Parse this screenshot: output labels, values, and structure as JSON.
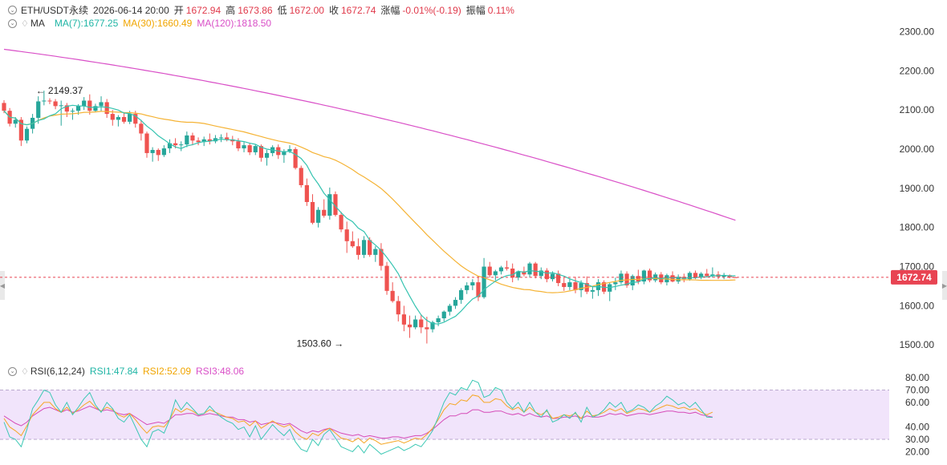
{
  "header": {
    "symbol": "ETH/USDT永续",
    "datetime": "2026-06-14 20:00",
    "open_label": "开",
    "open": "1672.94",
    "high_label": "高",
    "high": "1673.86",
    "low_label": "低",
    "low": "1672.00",
    "close_label": "收",
    "close": "1672.74",
    "change_label": "涨幅",
    "change": "-0.01%(-0.19)",
    "amp_label": "振幅",
    "amp": "0.11%"
  },
  "ma_legend": {
    "label": "MA",
    "ma7": "MA(7):1677.25",
    "ma30": "MA(30):1660.49",
    "ma120": "MA(120):1818.50"
  },
  "rsi_legend": {
    "label": "RSI(6,12,24)",
    "rsi1": "RSI1:47.84",
    "rsi2": "RSI2:52.09",
    "rsi3": "RSI3:48.06"
  },
  "colors": {
    "up": "#26a69a",
    "down": "#ef5350",
    "ma7": "#34c3b0",
    "ma30": "#f5b335",
    "ma120": "#d94fc7",
    "rsi1": "#3cc8b4",
    "rsi2": "#f5a623",
    "rsi3": "#d64bb8",
    "rsi_band": "#f1e4fb",
    "price_tag": "#e84352"
  },
  "chart_data": [
    {
      "type": "candlestick",
      "price_axis": {
        "ticks": [
          2300,
          2200,
          2100,
          2000,
          1900,
          1800,
          1700,
          1600,
          1500
        ],
        "ylim": [
          1480,
          2340
        ]
      },
      "last_price": 1672.74,
      "last_price_label": "1672.74",
      "annotations": [
        {
          "text": "2149.37",
          "value": 2149.37,
          "candle": 5,
          "side": "right"
        },
        {
          "text": "1503.60",
          "value": 1503.6,
          "candle": 60,
          "side": "left"
        }
      ],
      "ma120_start": 2255,
      "candles": [
        [
          2118,
          2125,
          2092,
          2098
        ],
        [
          2098,
          2105,
          2058,
          2065
        ],
        [
          2065,
          2082,
          2055,
          2075
        ],
        [
          2075,
          2082,
          2008,
          2022
        ],
        [
          2022,
          2058,
          2015,
          2052
        ],
        [
          2052,
          2090,
          2040,
          2080
        ],
        [
          2080,
          2135,
          2065,
          2122
        ],
        [
          2122,
          2149.37,
          2112,
          2124
        ],
        [
          2124,
          2130,
          2115,
          2122
        ],
        [
          2122,
          2128,
          2102,
          2110
        ],
        [
          2110,
          2124,
          2060,
          2112
        ],
        [
          2112,
          2118,
          2082,
          2096
        ],
        [
          2096,
          2104,
          2075,
          2098
        ],
        [
          2098,
          2115,
          2088,
          2110
        ],
        [
          2110,
          2133,
          2100,
          2124
        ],
        [
          2124,
          2140,
          2088,
          2098
        ],
        [
          2098,
          2116,
          2094,
          2110
        ],
        [
          2110,
          2135,
          2096,
          2120
        ],
        [
          2120,
          2128,
          2080,
          2090
        ],
        [
          2090,
          2100,
          2060,
          2075
        ],
        [
          2075,
          2087,
          2058,
          2082
        ],
        [
          2082,
          2092,
          2065,
          2070
        ],
        [
          2070,
          2098,
          2064,
          2090
        ],
        [
          2090,
          2098,
          2055,
          2065
        ],
        [
          2065,
          2075,
          2022,
          2040
        ],
        [
          2040,
          2045,
          1978,
          1990
        ],
        [
          1990,
          2005,
          1968,
          1998
        ],
        [
          1998,
          2002,
          1970,
          1985
        ],
        [
          1985,
          2010,
          1980,
          2002
        ],
        [
          2002,
          2025,
          1990,
          2015
        ],
        [
          2015,
          2028,
          2002,
          2010
        ],
        [
          2010,
          2020,
          1995,
          2012
        ],
        [
          2012,
          2045,
          2005,
          2035
        ],
        [
          2035,
          2042,
          2010,
          2022
        ],
        [
          2022,
          2030,
          2010,
          2018
        ],
        [
          2018,
          2032,
          2008,
          2025
        ],
        [
          2025,
          2040,
          2012,
          2020
        ],
        [
          2020,
          2036,
          2015,
          2028
        ],
        [
          2028,
          2038,
          2018,
          2030
        ],
        [
          2030,
          2042,
          2020,
          2025
        ],
        [
          2025,
          2034,
          2010,
          2020
        ],
        [
          2020,
          2028,
          1995,
          2002
        ],
        [
          2002,
          2018,
          1992,
          2010
        ],
        [
          2010,
          2016,
          1985,
          1992
        ],
        [
          1992,
          2012,
          1985,
          2008
        ],
        [
          2008,
          2012,
          1968,
          1978
        ],
        [
          1978,
          1998,
          1958,
          1990
        ],
        [
          1990,
          2010,
          1982,
          2005
        ],
        [
          2005,
          2012,
          1975,
          1985
        ],
        [
          1985,
          2000,
          1965,
          1995
        ],
        [
          1995,
          2010,
          1990,
          2000
        ],
        [
          2000,
          2005,
          1948,
          1952
        ],
        [
          1952,
          1958,
          1902,
          1908
        ],
        [
          1908,
          1925,
          1855,
          1865
        ],
        [
          1865,
          1885,
          1808,
          1812
        ],
        [
          1812,
          1852,
          1800,
          1845
        ],
        [
          1845,
          1872,
          1825,
          1830
        ],
        [
          1830,
          1902,
          1820,
          1885
        ],
        [
          1885,
          1892,
          1828,
          1832
        ],
        [
          1832,
          1840,
          1788,
          1795
        ],
        [
          1795,
          1815,
          1735,
          1765
        ],
        [
          1765,
          1790,
          1748,
          1752
        ],
        [
          1752,
          1772,
          1718,
          1730
        ],
        [
          1730,
          1778,
          1722,
          1768
        ],
        [
          1768,
          1775,
          1725,
          1730
        ],
        [
          1730,
          1752,
          1712,
          1745
        ],
        [
          1745,
          1760,
          1690,
          1702
        ],
        [
          1702,
          1712,
          1628,
          1638
        ],
        [
          1638,
          1660,
          1608,
          1612
        ],
        [
          1612,
          1625,
          1560,
          1578
        ],
        [
          1578,
          1600,
          1535,
          1552
        ],
        [
          1552,
          1575,
          1518,
          1545
        ],
        [
          1545,
          1575,
          1540,
          1565
        ],
        [
          1565,
          1578,
          1530,
          1545
        ],
        [
          1545,
          1572,
          1503.6,
          1540
        ],
        [
          1540,
          1562,
          1532,
          1558
        ],
        [
          1558,
          1575,
          1548,
          1568
        ],
        [
          1568,
          1588,
          1560,
          1585
        ],
        [
          1585,
          1605,
          1575,
          1600
        ],
        [
          1600,
          1622,
          1592,
          1615
        ],
        [
          1615,
          1645,
          1605,
          1640
        ],
        [
          1640,
          1660,
          1630,
          1652
        ],
        [
          1652,
          1668,
          1640,
          1660
        ],
        [
          1660,
          1675,
          1612,
          1622
        ],
        [
          1622,
          1722,
          1618,
          1700
        ],
        [
          1700,
          1712,
          1672,
          1678
        ],
        [
          1678,
          1692,
          1665,
          1688
        ],
        [
          1688,
          1702,
          1680,
          1698
        ],
        [
          1698,
          1715,
          1690,
          1695
        ],
        [
          1695,
          1708,
          1660,
          1672
        ],
        [
          1672,
          1690,
          1665,
          1688
        ],
        [
          1688,
          1700,
          1675,
          1680
        ],
        [
          1680,
          1712,
          1672,
          1708
        ],
        [
          1708,
          1712,
          1670,
          1676
        ],
        [
          1676,
          1698,
          1668,
          1690
        ],
        [
          1690,
          1696,
          1660,
          1668
        ],
        [
          1668,
          1688,
          1662,
          1682
        ],
        [
          1682,
          1690,
          1650,
          1658
        ],
        [
          1658,
          1672,
          1638,
          1648
        ],
        [
          1648,
          1670,
          1640,
          1660
        ],
        [
          1660,
          1674,
          1632,
          1640
        ],
        [
          1640,
          1665,
          1622,
          1658
        ],
        [
          1658,
          1675,
          1630,
          1636
        ],
        [
          1636,
          1650,
          1618,
          1640
        ],
        [
          1640,
          1668,
          1625,
          1660
        ],
        [
          1660,
          1665,
          1630,
          1636
        ],
        [
          1636,
          1660,
          1612,
          1655
        ],
        [
          1655,
          1672,
          1640,
          1660
        ],
        [
          1660,
          1690,
          1655,
          1682
        ],
        [
          1682,
          1688,
          1646,
          1652
        ],
        [
          1652,
          1680,
          1640,
          1676
        ],
        [
          1676,
          1692,
          1655,
          1662
        ],
        [
          1662,
          1692,
          1655,
          1690
        ],
        [
          1690,
          1695,
          1660,
          1665
        ],
        [
          1665,
          1685,
          1660,
          1680
        ],
        [
          1680,
          1686,
          1655,
          1660
        ],
        [
          1660,
          1682,
          1652,
          1678
        ],
        [
          1678,
          1688,
          1660,
          1662
        ],
        [
          1662,
          1680,
          1656,
          1674
        ],
        [
          1674,
          1682,
          1660,
          1668
        ],
        [
          1668,
          1688,
          1664,
          1684
        ],
        [
          1684,
          1690,
          1668,
          1672
        ],
        [
          1672,
          1686,
          1668,
          1682
        ],
        [
          1682,
          1694,
          1672,
          1676
        ],
        [
          1676,
          1698,
          1672,
          1680
        ],
        [
          1680,
          1688,
          1668,
          1674
        ],
        [
          1674,
          1684,
          1668,
          1678
        ],
        [
          1678,
          1680,
          1670,
          1672.94
        ],
        [
          1672.94,
          1673.86,
          1672.0,
          1672.74
        ]
      ]
    },
    {
      "type": "line",
      "title": "RSI(6,12,24)",
      "y_axis": {
        "ticks": [
          80,
          70,
          60,
          40,
          30,
          20
        ],
        "ylim": [
          17,
          84
        ]
      },
      "overbought": 70,
      "oversold": 30,
      "series": [
        {
          "name": "RSI1",
          "values": [
            44,
            32,
            30,
            24,
            38,
            55,
            62,
            70,
            68,
            58,
            52,
            60,
            50,
            56,
            63,
            68,
            58,
            52,
            60,
            55,
            47,
            44,
            50,
            40,
            30,
            24,
            36,
            38,
            35,
            46,
            62,
            54,
            60,
            55,
            50,
            51,
            57,
            52,
            48,
            45,
            43,
            38,
            40,
            32,
            41,
            30,
            36,
            42,
            37,
            33,
            38,
            28,
            22,
            20,
            30,
            25,
            34,
            38,
            31,
            24,
            22,
            20,
            25,
            19,
            26,
            22,
            18,
            20,
            22,
            24,
            21,
            23,
            26,
            24,
            30,
            37,
            48,
            60,
            68,
            66,
            72,
            70,
            78,
            76,
            64,
            66,
            72,
            70,
            60,
            55,
            60,
            52,
            60,
            52,
            48,
            54,
            44,
            46,
            50,
            47,
            52,
            44,
            56,
            48,
            50,
            54,
            60,
            56,
            60,
            52,
            54,
            58,
            56,
            52,
            57,
            60,
            65,
            62,
            58,
            60,
            56,
            60,
            54,
            48,
            47.84
          ]
        },
        {
          "name": "RSI2",
          "values": [
            47,
            40,
            37,
            33,
            41,
            50,
            55,
            60,
            60,
            55,
            52,
            56,
            51,
            54,
            58,
            61,
            56,
            53,
            56,
            54,
            50,
            48,
            51,
            46,
            40,
            35,
            40,
            41,
            40,
            46,
            55,
            52,
            55,
            53,
            50,
            51,
            54,
            52,
            50,
            48,
            47,
            44,
            45,
            41,
            45,
            39,
            42,
            45,
            42,
            40,
            42,
            36,
            32,
            30,
            35,
            33,
            37,
            39,
            35,
            31,
            30,
            28,
            31,
            27,
            31,
            29,
            26,
            27,
            28,
            29,
            27,
            29,
            31,
            30,
            34,
            39,
            46,
            54,
            59,
            58,
            62,
            61,
            66,
            65,
            60,
            60,
            63,
            62,
            57,
            54,
            56,
            52,
            56,
            52,
            50,
            53,
            47,
            48,
            50,
            49,
            51,
            47,
            53,
            49,
            50,
            52,
            55,
            53,
            55,
            51,
            53,
            55,
            54,
            52,
            54,
            56,
            58,
            57,
            55,
            56,
            54,
            55,
            52,
            50,
            52.09
          ]
        },
        {
          "name": "RSI3",
          "values": [
            49,
            46,
            43,
            41,
            44,
            49,
            52,
            55,
            56,
            54,
            52,
            54,
            52,
            53,
            55,
            57,
            55,
            53,
            54,
            53,
            51,
            50,
            51,
            48,
            45,
            42,
            43,
            44,
            43,
            46,
            50,
            50,
            51,
            51,
            49,
            50,
            51,
            50,
            49,
            48,
            48,
            46,
            46,
            44,
            45,
            42,
            43,
            44,
            43,
            42,
            43,
            40,
            37,
            35,
            37,
            36,
            38,
            39,
            37,
            35,
            34,
            33,
            34,
            32,
            33,
            32,
            31,
            31,
            32,
            32,
            31,
            32,
            33,
            33,
            35,
            38,
            42,
            46,
            49,
            49,
            51,
            51,
            54,
            54,
            52,
            52,
            53,
            53,
            51,
            50,
            51,
            49,
            51,
            49,
            48,
            49,
            47,
            47,
            48,
            48,
            49,
            47,
            49,
            48,
            48,
            49,
            51,
            50,
            51,
            49,
            50,
            51,
            51,
            50,
            51,
            52,
            53,
            53,
            52,
            52,
            51,
            52,
            50,
            49,
            48.06
          ]
        }
      ]
    }
  ]
}
